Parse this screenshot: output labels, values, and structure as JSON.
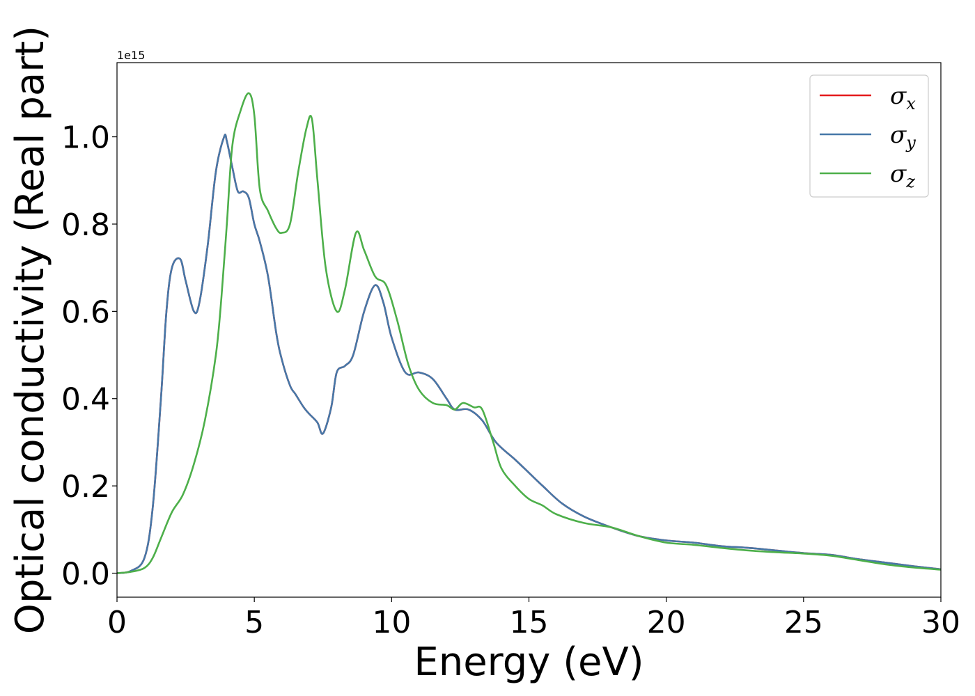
{
  "chart_data": {
    "type": "line",
    "xlabel": "Energy (eV)",
    "ylabel": "Optical conductivity (Real part)",
    "y_offset_label": "1e15",
    "y_scale": 1000000000000000.0,
    "xlim": [
      0,
      30
    ],
    "ylim": [
      -0.055,
      1.17
    ],
    "x_ticks": [
      0,
      5,
      10,
      15,
      20,
      25,
      30
    ],
    "x_tick_labels": [
      "0",
      "5",
      "10",
      "15",
      "20",
      "25",
      "30"
    ],
    "y_ticks": [
      0.0,
      0.2,
      0.4,
      0.6,
      0.8,
      1.0
    ],
    "y_tick_labels": [
      "0.0",
      "0.2",
      "0.4",
      "0.6",
      "0.8",
      "1.0"
    ],
    "grid": false,
    "legend_position": "top-right",
    "series": [
      {
        "name": "σx",
        "legend_symbol": "σ",
        "legend_subscript": "x",
        "color": "#e41a1c",
        "x": [
          0,
          0.5,
          1.0,
          1.3,
          1.6,
          1.8,
          2.0,
          2.3,
          2.5,
          2.8,
          3.0,
          3.3,
          3.6,
          3.9,
          4.0,
          4.2,
          4.4,
          4.6,
          4.8,
          5.0,
          5.2,
          5.5,
          5.8,
          6.0,
          6.3,
          6.5,
          6.8,
          7.0,
          7.3,
          7.5,
          7.8,
          8.0,
          8.3,
          8.6,
          9.0,
          9.4,
          9.7,
          10.0,
          10.5,
          11.0,
          11.5,
          12.0,
          12.3,
          12.8,
          13.3,
          13.8,
          14.5,
          15.0,
          15.5,
          16.2,
          17.0,
          18.0,
          19.0,
          20.0,
          21.0,
          22.0,
          23.0,
          24.0,
          25.0,
          26.0,
          27.0,
          28.0,
          29.0,
          30.0
        ],
        "values": [
          0.0,
          0.005,
          0.035,
          0.15,
          0.4,
          0.6,
          0.7,
          0.72,
          0.67,
          0.6,
          0.62,
          0.75,
          0.92,
          1.0,
          0.99,
          0.93,
          0.875,
          0.875,
          0.86,
          0.8,
          0.76,
          0.68,
          0.55,
          0.49,
          0.43,
          0.41,
          0.38,
          0.365,
          0.345,
          0.32,
          0.38,
          0.46,
          0.475,
          0.5,
          0.6,
          0.66,
          0.62,
          0.54,
          0.46,
          0.46,
          0.445,
          0.4,
          0.375,
          0.375,
          0.35,
          0.3,
          0.26,
          0.23,
          0.2,
          0.16,
          0.13,
          0.105,
          0.085,
          0.075,
          0.07,
          0.062,
          0.058,
          0.052,
          0.046,
          0.042,
          0.032,
          0.024,
          0.016,
          0.009
        ]
      },
      {
        "name": "σy",
        "legend_symbol": "σ",
        "legend_subscript": "y",
        "color": "#4678a8",
        "x": [
          0,
          0.5,
          1.0,
          1.3,
          1.6,
          1.8,
          2.0,
          2.3,
          2.5,
          2.8,
          3.0,
          3.3,
          3.6,
          3.9,
          4.0,
          4.2,
          4.4,
          4.6,
          4.8,
          5.0,
          5.2,
          5.5,
          5.8,
          6.0,
          6.3,
          6.5,
          6.8,
          7.0,
          7.3,
          7.5,
          7.8,
          8.0,
          8.3,
          8.6,
          9.0,
          9.4,
          9.7,
          10.0,
          10.5,
          11.0,
          11.5,
          12.0,
          12.3,
          12.8,
          13.3,
          13.8,
          14.5,
          15.0,
          15.5,
          16.2,
          17.0,
          18.0,
          19.0,
          20.0,
          21.0,
          22.0,
          23.0,
          24.0,
          25.0,
          26.0,
          27.0,
          28.0,
          29.0,
          30.0
        ],
        "values": [
          0.0,
          0.005,
          0.035,
          0.15,
          0.4,
          0.6,
          0.7,
          0.72,
          0.67,
          0.6,
          0.62,
          0.75,
          0.92,
          1.0,
          0.99,
          0.93,
          0.875,
          0.875,
          0.86,
          0.8,
          0.76,
          0.68,
          0.55,
          0.49,
          0.43,
          0.41,
          0.38,
          0.365,
          0.345,
          0.32,
          0.38,
          0.46,
          0.475,
          0.5,
          0.6,
          0.66,
          0.62,
          0.54,
          0.46,
          0.46,
          0.445,
          0.4,
          0.375,
          0.375,
          0.35,
          0.3,
          0.26,
          0.23,
          0.2,
          0.16,
          0.13,
          0.105,
          0.085,
          0.075,
          0.07,
          0.062,
          0.058,
          0.052,
          0.046,
          0.042,
          0.032,
          0.024,
          0.016,
          0.009
        ]
      },
      {
        "name": "σz",
        "legend_symbol": "σ",
        "legend_subscript": "z",
        "color": "#4daf4a",
        "x": [
          0,
          0.5,
          1.0,
          1.3,
          1.6,
          2.0,
          2.4,
          2.8,
          3.2,
          3.6,
          3.8,
          4.0,
          4.2,
          4.5,
          4.8,
          5.0,
          5.2,
          5.5,
          5.8,
          6.0,
          6.3,
          6.6,
          6.9,
          7.1,
          7.3,
          7.6,
          8.0,
          8.3,
          8.7,
          9.0,
          9.4,
          9.8,
          10.2,
          10.6,
          11.0,
          11.5,
          12.0,
          12.3,
          12.6,
          13.0,
          13.3,
          13.7,
          14.0,
          14.5,
          15.0,
          15.5,
          16.0,
          17.0,
          18.0,
          19.0,
          20.0,
          21.0,
          22.0,
          23.0,
          24.0,
          25.0,
          26.0,
          27.0,
          28.0,
          29.0,
          30.0
        ],
        "values": [
          0.0,
          0.003,
          0.012,
          0.035,
          0.08,
          0.14,
          0.18,
          0.25,
          0.35,
          0.5,
          0.63,
          0.8,
          0.98,
          1.06,
          1.1,
          1.05,
          0.88,
          0.83,
          0.79,
          0.78,
          0.8,
          0.92,
          1.02,
          1.04,
          0.9,
          0.7,
          0.6,
          0.65,
          0.78,
          0.74,
          0.68,
          0.66,
          0.58,
          0.48,
          0.42,
          0.39,
          0.385,
          0.375,
          0.39,
          0.38,
          0.375,
          0.3,
          0.24,
          0.2,
          0.17,
          0.155,
          0.135,
          0.115,
          0.105,
          0.085,
          0.07,
          0.065,
          0.058,
          0.052,
          0.048,
          0.045,
          0.04,
          0.03,
          0.02,
          0.013,
          0.008
        ]
      }
    ]
  }
}
